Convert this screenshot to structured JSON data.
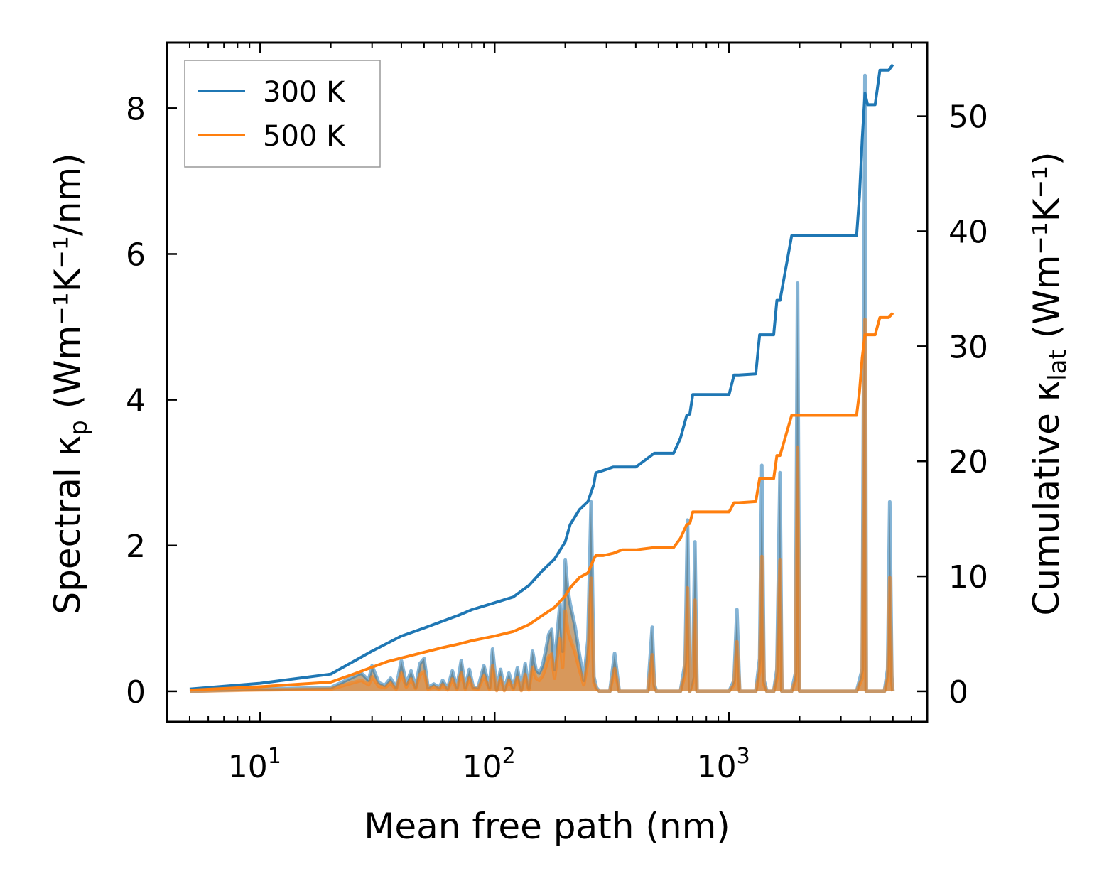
{
  "chart_data": {
    "type": "line",
    "xscale": "log",
    "xlim": [
      4,
      7000
    ],
    "ylim_left": [
      -0.42,
      8.9
    ],
    "ylim_right": [
      -2.66,
      56.4
    ],
    "xlabel": "Mean free path (nm)",
    "ylabel_left": {
      "prefix": "Spectral κ",
      "sub": "p",
      "units": " (Wm⁻¹K⁻¹/nm)"
    },
    "ylabel_right": {
      "prefix": "Cumulative κ",
      "sub": "lat",
      "units": " (Wm⁻¹K⁻¹)"
    },
    "x_ticks": [
      {
        "base": "10",
        "exp": "1",
        "value": 10
      },
      {
        "base": "10",
        "exp": "2",
        "value": 100
      },
      {
        "base": "10",
        "exp": "3",
        "value": 1000
      }
    ],
    "y_ticks_left": [
      {
        "label": "0",
        "value": 0
      },
      {
        "label": "2",
        "value": 2
      },
      {
        "label": "4",
        "value": 4
      },
      {
        "label": "6",
        "value": 6
      },
      {
        "label": "8",
        "value": 8
      }
    ],
    "y_ticks_right": [
      {
        "label": "0",
        "value": 0
      },
      {
        "label": "10",
        "value": 10
      },
      {
        "label": "20",
        "value": 20
      },
      {
        "label": "30",
        "value": 30
      },
      {
        "label": "40",
        "value": 40
      },
      {
        "label": "50",
        "value": 50
      }
    ],
    "legend": {
      "position": "top-left",
      "entries": [
        {
          "label": "300 K",
          "color": "#1f77b4"
        },
        {
          "label": "500 K",
          "color": "#ff7f0e"
        }
      ]
    },
    "series": [
      {
        "name": "300 K",
        "color": "#1f77b4",
        "axis": "right",
        "kind": "cumulative",
        "x": [
          5,
          10,
          20,
          25,
          30,
          35,
          40,
          50,
          60,
          70,
          80,
          100,
          120,
          140,
          160,
          180,
          200,
          210,
          230,
          250,
          265,
          270,
          290,
          320,
          350,
          400,
          480,
          580,
          620,
          660,
          680,
          700,
          750,
          800,
          1000,
          1050,
          1100,
          1300,
          1350,
          1400,
          1550,
          1600,
          1650,
          1850,
          1900,
          1950,
          2200,
          3500,
          3600,
          3700,
          3800,
          3900,
          4000,
          4200,
          4400,
          4800,
          5000
        ],
        "y": [
          0.2,
          0.7,
          1.5,
          2.6,
          3.5,
          4.2,
          4.8,
          5.5,
          6.1,
          6.6,
          7.1,
          7.7,
          8.2,
          9.2,
          10.5,
          11.5,
          13.0,
          14.5,
          15.8,
          16.5,
          18.0,
          19.0,
          19.2,
          19.5,
          19.5,
          19.5,
          20.7,
          20.7,
          22.0,
          24.0,
          24.1,
          25.8,
          25.8,
          25.8,
          25.8,
          27.5,
          27.5,
          27.6,
          31.0,
          31.0,
          31.0,
          34.0,
          34.0,
          39.6,
          39.6,
          39.6,
          39.6,
          39.6,
          43.0,
          48.0,
          52.0,
          51.0,
          51.0,
          51.0,
          54.0,
          54.0,
          54.5
        ]
      },
      {
        "name": "500 K",
        "color": "#ff7f0e",
        "axis": "right",
        "kind": "cumulative",
        "x": [
          5,
          10,
          20,
          25,
          30,
          35,
          40,
          50,
          60,
          70,
          80,
          100,
          120,
          140,
          160,
          180,
          200,
          210,
          230,
          250,
          265,
          270,
          290,
          320,
          350,
          400,
          480,
          580,
          620,
          660,
          680,
          700,
          750,
          800,
          1000,
          1050,
          1100,
          1300,
          1350,
          1400,
          1550,
          1600,
          1650,
          1850,
          1900,
          1950,
          2200,
          3500,
          3600,
          3700,
          3800,
          3900,
          4000,
          4200,
          4400,
          4800,
          5000
        ],
        "y": [
          0.1,
          0.4,
          0.8,
          1.5,
          2.1,
          2.6,
          2.9,
          3.4,
          3.8,
          4.1,
          4.4,
          4.8,
          5.2,
          5.8,
          6.6,
          7.3,
          8.3,
          9.0,
          9.9,
          10.3,
          11.5,
          11.8,
          11.8,
          12.0,
          12.3,
          12.3,
          12.5,
          12.5,
          13.3,
          14.5,
          14.6,
          15.6,
          15.6,
          15.6,
          15.6,
          16.4,
          16.4,
          16.5,
          18.5,
          18.5,
          18.5,
          20.5,
          20.5,
          24.0,
          24.0,
          24.0,
          24.0,
          24.0,
          26.0,
          29.0,
          31.0,
          31.0,
          31.0,
          31.0,
          32.5,
          32.5,
          32.9
        ]
      },
      {
        "name": "300 K spectral",
        "color": "#1f77b4",
        "axis": "left",
        "kind": "spectral",
        "x": [
          5,
          10,
          20,
          25,
          27,
          29,
          30,
          32,
          34,
          36,
          38,
          40,
          42,
          44,
          46,
          48,
          50,
          52,
          55,
          58,
          60,
          63,
          66,
          69,
          72,
          75,
          78,
          81,
          85,
          90,
          95,
          98,
          102,
          106,
          110,
          115,
          120,
          125,
          130,
          135,
          140,
          145,
          150,
          155,
          160,
          165,
          170,
          175,
          180,
          185,
          190,
          195,
          200,
          205,
          210,
          220,
          230,
          240,
          250,
          258,
          265,
          272,
          280,
          310,
          325,
          340,
          355,
          450,
          470,
          480,
          490,
          520,
          560,
          620,
          650,
          665,
          680,
          700,
          715,
          730,
          760,
          1000,
          1050,
          1080,
          1110,
          1200,
          1300,
          1350,
          1380,
          1410,
          1450,
          1550,
          1600,
          1650,
          1680,
          1720,
          1850,
          1920,
          1960,
          2000,
          2100,
          3500,
          3700,
          3800,
          3850,
          3900,
          3960,
          4000,
          4300,
          4600,
          4750,
          4850,
          4950,
          5000
        ],
        "y": [
          0,
          0.03,
          0.05,
          0.2,
          0.25,
          0.15,
          0.35,
          0.12,
          0.08,
          0.18,
          0.05,
          0.42,
          0.1,
          0.28,
          0.06,
          0.38,
          0.45,
          0.05,
          0.1,
          0.05,
          0.15,
          0.04,
          0.28,
          0.05,
          0.42,
          0.05,
          0.3,
          0.06,
          0.05,
          0.35,
          0.05,
          0.58,
          0.02,
          0.3,
          0.02,
          0.25,
          0.05,
          0.32,
          0.02,
          0.38,
          0.04,
          0.55,
          0.3,
          0.25,
          0.35,
          0.55,
          0.78,
          0.85,
          0.3,
          0.8,
          1.2,
          0.55,
          1.8,
          1.4,
          1.2,
          0.9,
          0.5,
          0.15,
          0.7,
          2.6,
          0.2,
          0.05,
          0,
          0,
          0.52,
          0,
          0,
          0,
          0.88,
          0.1,
          0,
          0,
          0,
          0,
          0.4,
          2.35,
          0,
          0.2,
          2.05,
          0,
          0,
          0,
          0.15,
          1.12,
          0,
          0,
          0,
          0.45,
          3.1,
          0.15,
          0,
          0,
          0.3,
          3.0,
          0,
          0,
          0,
          0.25,
          5.6,
          0,
          0,
          0,
          0.3,
          8.45,
          0,
          0,
          0,
          0,
          0,
          0,
          0.3,
          2.6,
          0.2,
          0
        ],
        "fill": "#b9986f",
        "fill_opacity": 0.85
      },
      {
        "name": "500 K spectral",
        "color": "#ff7f0e",
        "axis": "left",
        "kind": "spectral",
        "x": [
          5,
          10,
          20,
          25,
          27,
          29,
          30,
          32,
          34,
          36,
          38,
          40,
          42,
          44,
          46,
          48,
          50,
          52,
          55,
          58,
          60,
          63,
          66,
          69,
          72,
          75,
          78,
          81,
          85,
          90,
          95,
          98,
          102,
          106,
          110,
          115,
          120,
          125,
          130,
          135,
          140,
          145,
          150,
          155,
          160,
          165,
          170,
          175,
          180,
          185,
          190,
          195,
          200,
          205,
          210,
          220,
          230,
          240,
          250,
          258,
          265,
          272,
          280,
          310,
          325,
          340,
          355,
          450,
          470,
          480,
          490,
          520,
          560,
          620,
          650,
          665,
          680,
          700,
          715,
          730,
          760,
          1000,
          1050,
          1080,
          1110,
          1200,
          1300,
          1350,
          1380,
          1410,
          1450,
          1550,
          1600,
          1650,
          1680,
          1720,
          1850,
          1920,
          1960,
          2000,
          2100,
          3500,
          3700,
          3800,
          3850,
          3900,
          3960,
          4000,
          4300,
          4600,
          4750,
          4850,
          4950,
          5000
        ],
        "y": [
          0,
          0.02,
          0.03,
          0.12,
          0.15,
          0.09,
          0.2,
          0.07,
          0.05,
          0.11,
          0.03,
          0.25,
          0.06,
          0.17,
          0.04,
          0.23,
          0.27,
          0.03,
          0.06,
          0.03,
          0.09,
          0.02,
          0.17,
          0.03,
          0.25,
          0.03,
          0.18,
          0.04,
          0.03,
          0.21,
          0.03,
          0.35,
          0.01,
          0.18,
          0.01,
          0.15,
          0.03,
          0.19,
          0.01,
          0.23,
          0.02,
          0.33,
          0.18,
          0.15,
          0.21,
          0.33,
          0.47,
          0.51,
          0.18,
          0.48,
          0.72,
          0.33,
          1.1,
          0.84,
          0.72,
          0.54,
          0.3,
          0.09,
          0.42,
          1.55,
          0.12,
          0.03,
          0,
          0,
          0.31,
          0,
          0,
          0,
          0.5,
          0.06,
          0,
          0,
          0,
          0,
          0.24,
          1.42,
          0,
          0.12,
          1.25,
          0,
          0,
          0,
          0.09,
          0.68,
          0,
          0,
          0,
          0.27,
          1.85,
          0.09,
          0,
          0,
          0.18,
          1.8,
          0,
          0,
          0,
          0.15,
          3.35,
          0,
          0,
          0,
          0.18,
          5.1,
          0,
          0,
          0,
          0,
          0,
          0,
          0.18,
          1.56,
          0.12,
          0
        ],
        "fill": "#ff7f0e",
        "fill_opacity": 0.35
      }
    ]
  }
}
